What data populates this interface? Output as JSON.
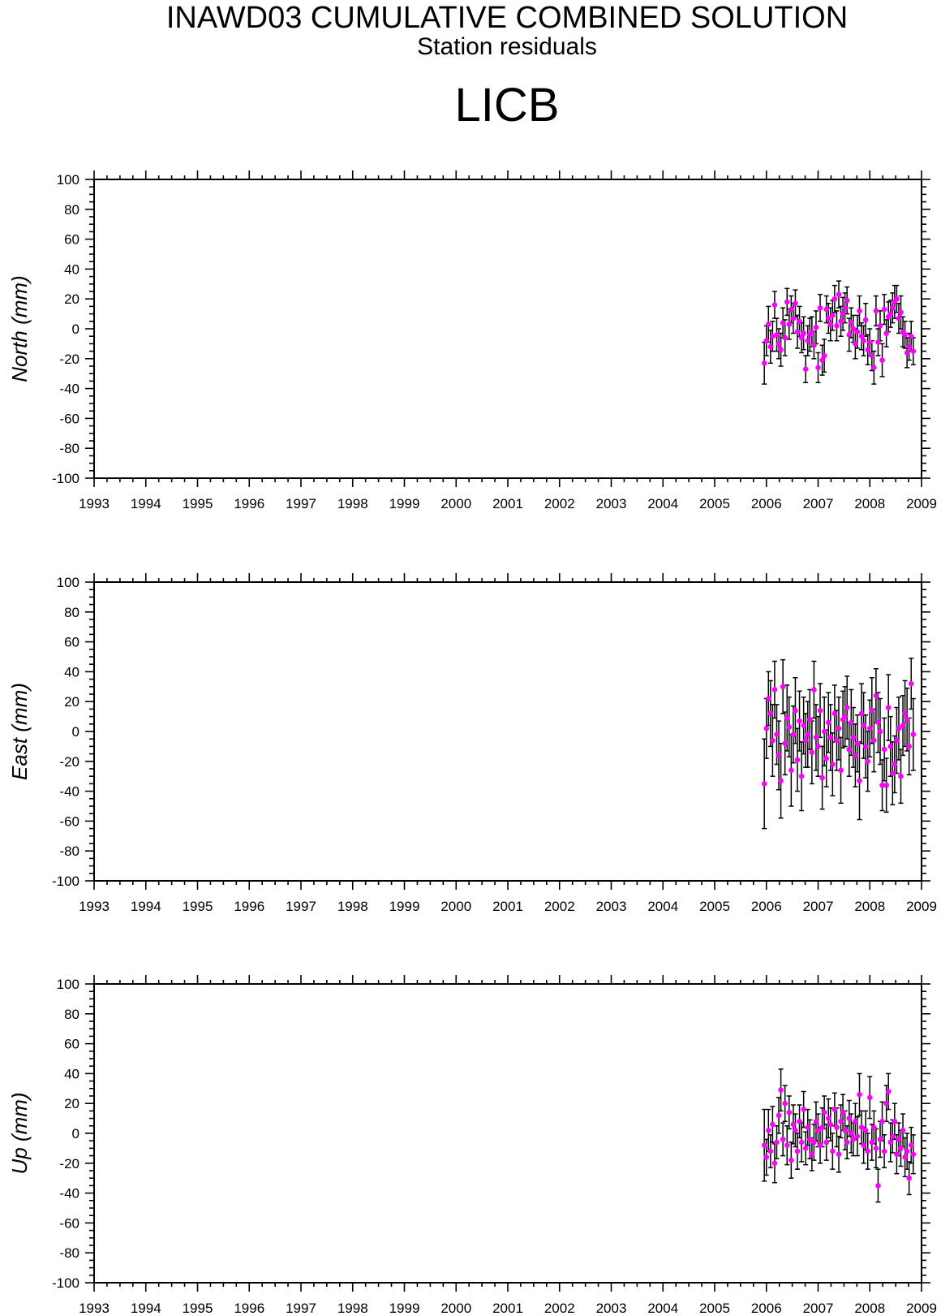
{
  "header": {
    "title": "INAWD03 CUMULATIVE COMBINED SOLUTION",
    "subtitle": "Station residuals",
    "station": "LICB"
  },
  "colors": {
    "marker": "#ff00ff",
    "errorbar": "#000000",
    "axis": "#000000"
  },
  "chart_data": [
    {
      "type": "scatter",
      "ylabel": "North (mm)",
      "xlim": [
        1993,
        2009
      ],
      "ylim": [
        -100,
        100
      ],
      "xticks": [
        "1993",
        "1994",
        "1995",
        "1996",
        "1997",
        "1998",
        "1999",
        "2000",
        "2001",
        "2002",
        "2003",
        "2004",
        "2005",
        "2006",
        "2007",
        "2008",
        "2009"
      ],
      "yticks": [
        "100",
        "80",
        "60",
        "40",
        "20",
        "0",
        "-20",
        "-40",
        "-60",
        "-80",
        "-100"
      ],
      "grid": false,
      "series": [
        {
          "marker": "circle",
          "error_bars": true,
          "x": [
            2005.96,
            2006.0,
            2006.04,
            2006.08,
            2006.12,
            2006.16,
            2006.2,
            2006.24,
            2006.28,
            2006.32,
            2006.36,
            2006.4,
            2006.44,
            2006.48,
            2006.52,
            2006.56,
            2006.6,
            2006.64,
            2006.68,
            2006.72,
            2006.76,
            2006.8,
            2006.84,
            2006.88,
            2006.92,
            2006.96,
            2007.0,
            2007.04,
            2007.08,
            2007.12,
            2007.16,
            2007.2,
            2007.24,
            2007.28,
            2007.32,
            2007.36,
            2007.4,
            2007.44,
            2007.48,
            2007.52,
            2007.56,
            2007.6,
            2007.64,
            2007.68,
            2007.72,
            2007.76,
            2007.8,
            2007.84,
            2007.88,
            2007.92,
            2007.96,
            2008.0,
            2008.04,
            2008.08,
            2008.12,
            2008.16,
            2008.2,
            2008.24,
            2008.28,
            2008.32,
            2008.36,
            2008.4,
            2008.44,
            2008.48,
            2008.52,
            2008.56,
            2008.6,
            2008.64,
            2008.68,
            2008.72,
            2008.76,
            2008.8,
            2008.84
          ],
          "y": [
            -23,
            -8,
            3,
            -12,
            -5,
            16,
            -4,
            -10,
            -14,
            4,
            -6,
            18,
            3,
            13,
            7,
            17,
            -2,
            5,
            -6,
            -3,
            -27,
            -8,
            -4,
            -2,
            -11,
            1,
            -26,
            14,
            -21,
            -18,
            13,
            7,
            3,
            9,
            20,
            2,
            23,
            5,
            10,
            14,
            19,
            -4,
            4,
            0,
            -10,
            -2,
            12,
            -5,
            -8,
            6,
            -14,
            -9,
            -18,
            -26,
            12,
            -9,
            2,
            -21,
            13,
            -3,
            8,
            10,
            14,
            18,
            20,
            7,
            11,
            -2,
            -4,
            -16,
            -12,
            -5,
            -15
          ],
          "err": [
            14,
            10,
            12,
            11,
            10,
            9,
            11,
            10,
            11,
            10,
            12,
            9,
            10,
            9,
            10,
            9,
            11,
            10,
            10,
            11,
            9,
            10,
            11,
            10,
            9,
            11,
            10,
            9,
            10,
            11,
            9,
            10,
            11,
            10,
            9,
            10,
            9,
            10,
            11,
            10,
            9,
            11,
            10,
            9,
            10,
            11,
            10,
            9,
            10,
            11,
            10,
            9,
            10,
            11,
            10,
            9,
            10,
            11,
            10,
            9,
            10,
            9,
            10,
            11,
            9,
            10,
            11,
            10,
            9,
            10,
            9,
            10,
            9
          ]
        }
      ]
    },
    {
      "type": "scatter",
      "ylabel": "East (mm)",
      "xlim": [
        1993,
        2009
      ],
      "ylim": [
        -100,
        100
      ],
      "xticks": [
        "1993",
        "1994",
        "1995",
        "1996",
        "1997",
        "1998",
        "1999",
        "2000",
        "2001",
        "2002",
        "2003",
        "2004",
        "2005",
        "2006",
        "2007",
        "2008",
        "2009"
      ],
      "yticks": [
        "100",
        "80",
        "60",
        "40",
        "20",
        "0",
        "-20",
        "-40",
        "-60",
        "-80",
        "-100"
      ],
      "grid": false,
      "series": [
        {
          "marker": "circle",
          "error_bars": true,
          "x": [
            2005.96,
            2006.0,
            2006.04,
            2006.08,
            2006.12,
            2006.16,
            2006.2,
            2006.24,
            2006.28,
            2006.32,
            2006.36,
            2006.4,
            2006.44,
            2006.48,
            2006.52,
            2006.56,
            2006.6,
            2006.64,
            2006.68,
            2006.72,
            2006.76,
            2006.8,
            2006.84,
            2006.88,
            2006.92,
            2006.96,
            2007.0,
            2007.04,
            2007.08,
            2007.12,
            2007.16,
            2007.2,
            2007.24,
            2007.28,
            2007.32,
            2007.36,
            2007.4,
            2007.44,
            2007.48,
            2007.52,
            2007.56,
            2007.6,
            2007.64,
            2007.68,
            2007.72,
            2007.76,
            2007.8,
            2007.84,
            2007.88,
            2007.92,
            2007.96,
            2008.0,
            2008.04,
            2008.08,
            2008.12,
            2008.16,
            2008.2,
            2008.24,
            2008.28,
            2008.32,
            2008.36,
            2008.4,
            2008.44,
            2008.48,
            2008.52,
            2008.56,
            2008.6,
            2008.64,
            2008.68,
            2008.72,
            2008.76,
            2008.8,
            2008.84
          ],
          "y": [
            -35,
            2,
            22,
            12,
            -6,
            28,
            -2,
            -16,
            -33,
            30,
            -8,
            9,
            3,
            -26,
            -2,
            14,
            -19,
            7,
            -30,
            4,
            -6,
            -2,
            8,
            -14,
            28,
            -4,
            -10,
            14,
            -31,
            0,
            -18,
            6,
            -4,
            -22,
            12,
            -6,
            2,
            -26,
            8,
            10,
            16,
            -12,
            6,
            -4,
            -16,
            -8,
            -33,
            12,
            4,
            -10,
            -20,
            2,
            14,
            -6,
            24,
            6,
            0,
            -36,
            -12,
            -36,
            16,
            -10,
            -28,
            -22,
            -6,
            2,
            -30,
            4,
            12,
            8,
            -10,
            32,
            -2
          ],
          "err": [
            30,
            20,
            18,
            22,
            24,
            19,
            20,
            23,
            25,
            18,
            21,
            22,
            20,
            24,
            19,
            22,
            21,
            20,
            23,
            19,
            18,
            22,
            20,
            21,
            19,
            22,
            20,
            18,
            21,
            23,
            19,
            20,
            22,
            21,
            19,
            20,
            21,
            22,
            19,
            20,
            21,
            18,
            22,
            20,
            21,
            19,
            26,
            20,
            22,
            21,
            20,
            19,
            22,
            21,
            18,
            20,
            22,
            17,
            21,
            18,
            22,
            20,
            21,
            19,
            22,
            21,
            18,
            20,
            22,
            21,
            19,
            17,
            24
          ]
        }
      ]
    },
    {
      "type": "scatter",
      "ylabel": "Up (mm)",
      "xlim": [
        1993,
        2009
      ],
      "ylim": [
        -100,
        100
      ],
      "xticks": [
        "1993",
        "1994",
        "1995",
        "1996",
        "1997",
        "1998",
        "1999",
        "2000",
        "2001",
        "2002",
        "2003",
        "2004",
        "2005",
        "2006",
        "2007",
        "2008",
        "2009"
      ],
      "yticks": [
        "100",
        "80",
        "60",
        "40",
        "20",
        "0",
        "-20",
        "-40",
        "-60",
        "-80",
        "-100"
      ],
      "grid": false,
      "series": [
        {
          "marker": "circle",
          "error_bars": true,
          "x": [
            2005.96,
            2006.0,
            2006.04,
            2006.08,
            2006.12,
            2006.16,
            2006.2,
            2006.24,
            2006.28,
            2006.32,
            2006.36,
            2006.4,
            2006.44,
            2006.48,
            2006.52,
            2006.56,
            2006.6,
            2006.64,
            2006.68,
            2006.72,
            2006.76,
            2006.8,
            2006.84,
            2006.88,
            2006.92,
            2006.96,
            2007.0,
            2007.04,
            2007.08,
            2007.12,
            2007.16,
            2007.2,
            2007.24,
            2007.28,
            2007.32,
            2007.36,
            2007.4,
            2007.44,
            2007.48,
            2007.52,
            2007.56,
            2007.6,
            2007.64,
            2007.68,
            2007.72,
            2007.76,
            2007.8,
            2007.84,
            2007.88,
            2007.92,
            2007.96,
            2008.0,
            2008.04,
            2008.08,
            2008.12,
            2008.16,
            2008.2,
            2008.24,
            2008.28,
            2008.32,
            2008.36,
            2008.4,
            2008.44,
            2008.48,
            2008.52,
            2008.56,
            2008.6,
            2008.64,
            2008.68,
            2008.72,
            2008.76,
            2008.8,
            2008.84
          ],
          "y": [
            -8,
            -16,
            2,
            -12,
            6,
            -20,
            -6,
            12,
            29,
            -4,
            20,
            -8,
            14,
            -18,
            6,
            2,
            -12,
            8,
            -6,
            16,
            -10,
            4,
            -4,
            -14,
            -6,
            8,
            2,
            -8,
            4,
            14,
            -6,
            10,
            6,
            -12,
            16,
            4,
            -14,
            8,
            14,
            2,
            -6,
            10,
            0,
            -4,
            8,
            -2,
            26,
            4,
            -8,
            2,
            -12,
            24,
            -6,
            4,
            -10,
            -35,
            -4,
            8,
            -12,
            20,
            28,
            -6,
            -2,
            8,
            -14,
            -4,
            -10,
            2,
            -16,
            -12,
            -30,
            -8,
            -14
          ],
          "err": [
            24,
            12,
            14,
            11,
            12,
            13,
            11,
            12,
            14,
            11,
            12,
            13,
            11,
            12,
            13,
            11,
            12,
            11,
            13,
            12,
            11,
            12,
            13,
            11,
            12,
            13,
            11,
            12,
            13,
            11,
            12,
            13,
            11,
            12,
            11,
            13,
            12,
            11,
            12,
            13,
            11,
            12,
            13,
            11,
            12,
            13,
            14,
            11,
            12,
            13,
            12,
            14,
            12,
            11,
            13,
            11,
            12,
            13,
            11,
            12,
            12,
            13,
            11,
            12,
            13,
            11,
            12,
            11,
            13,
            12,
            11,
            12,
            13
          ]
        }
      ]
    }
  ]
}
